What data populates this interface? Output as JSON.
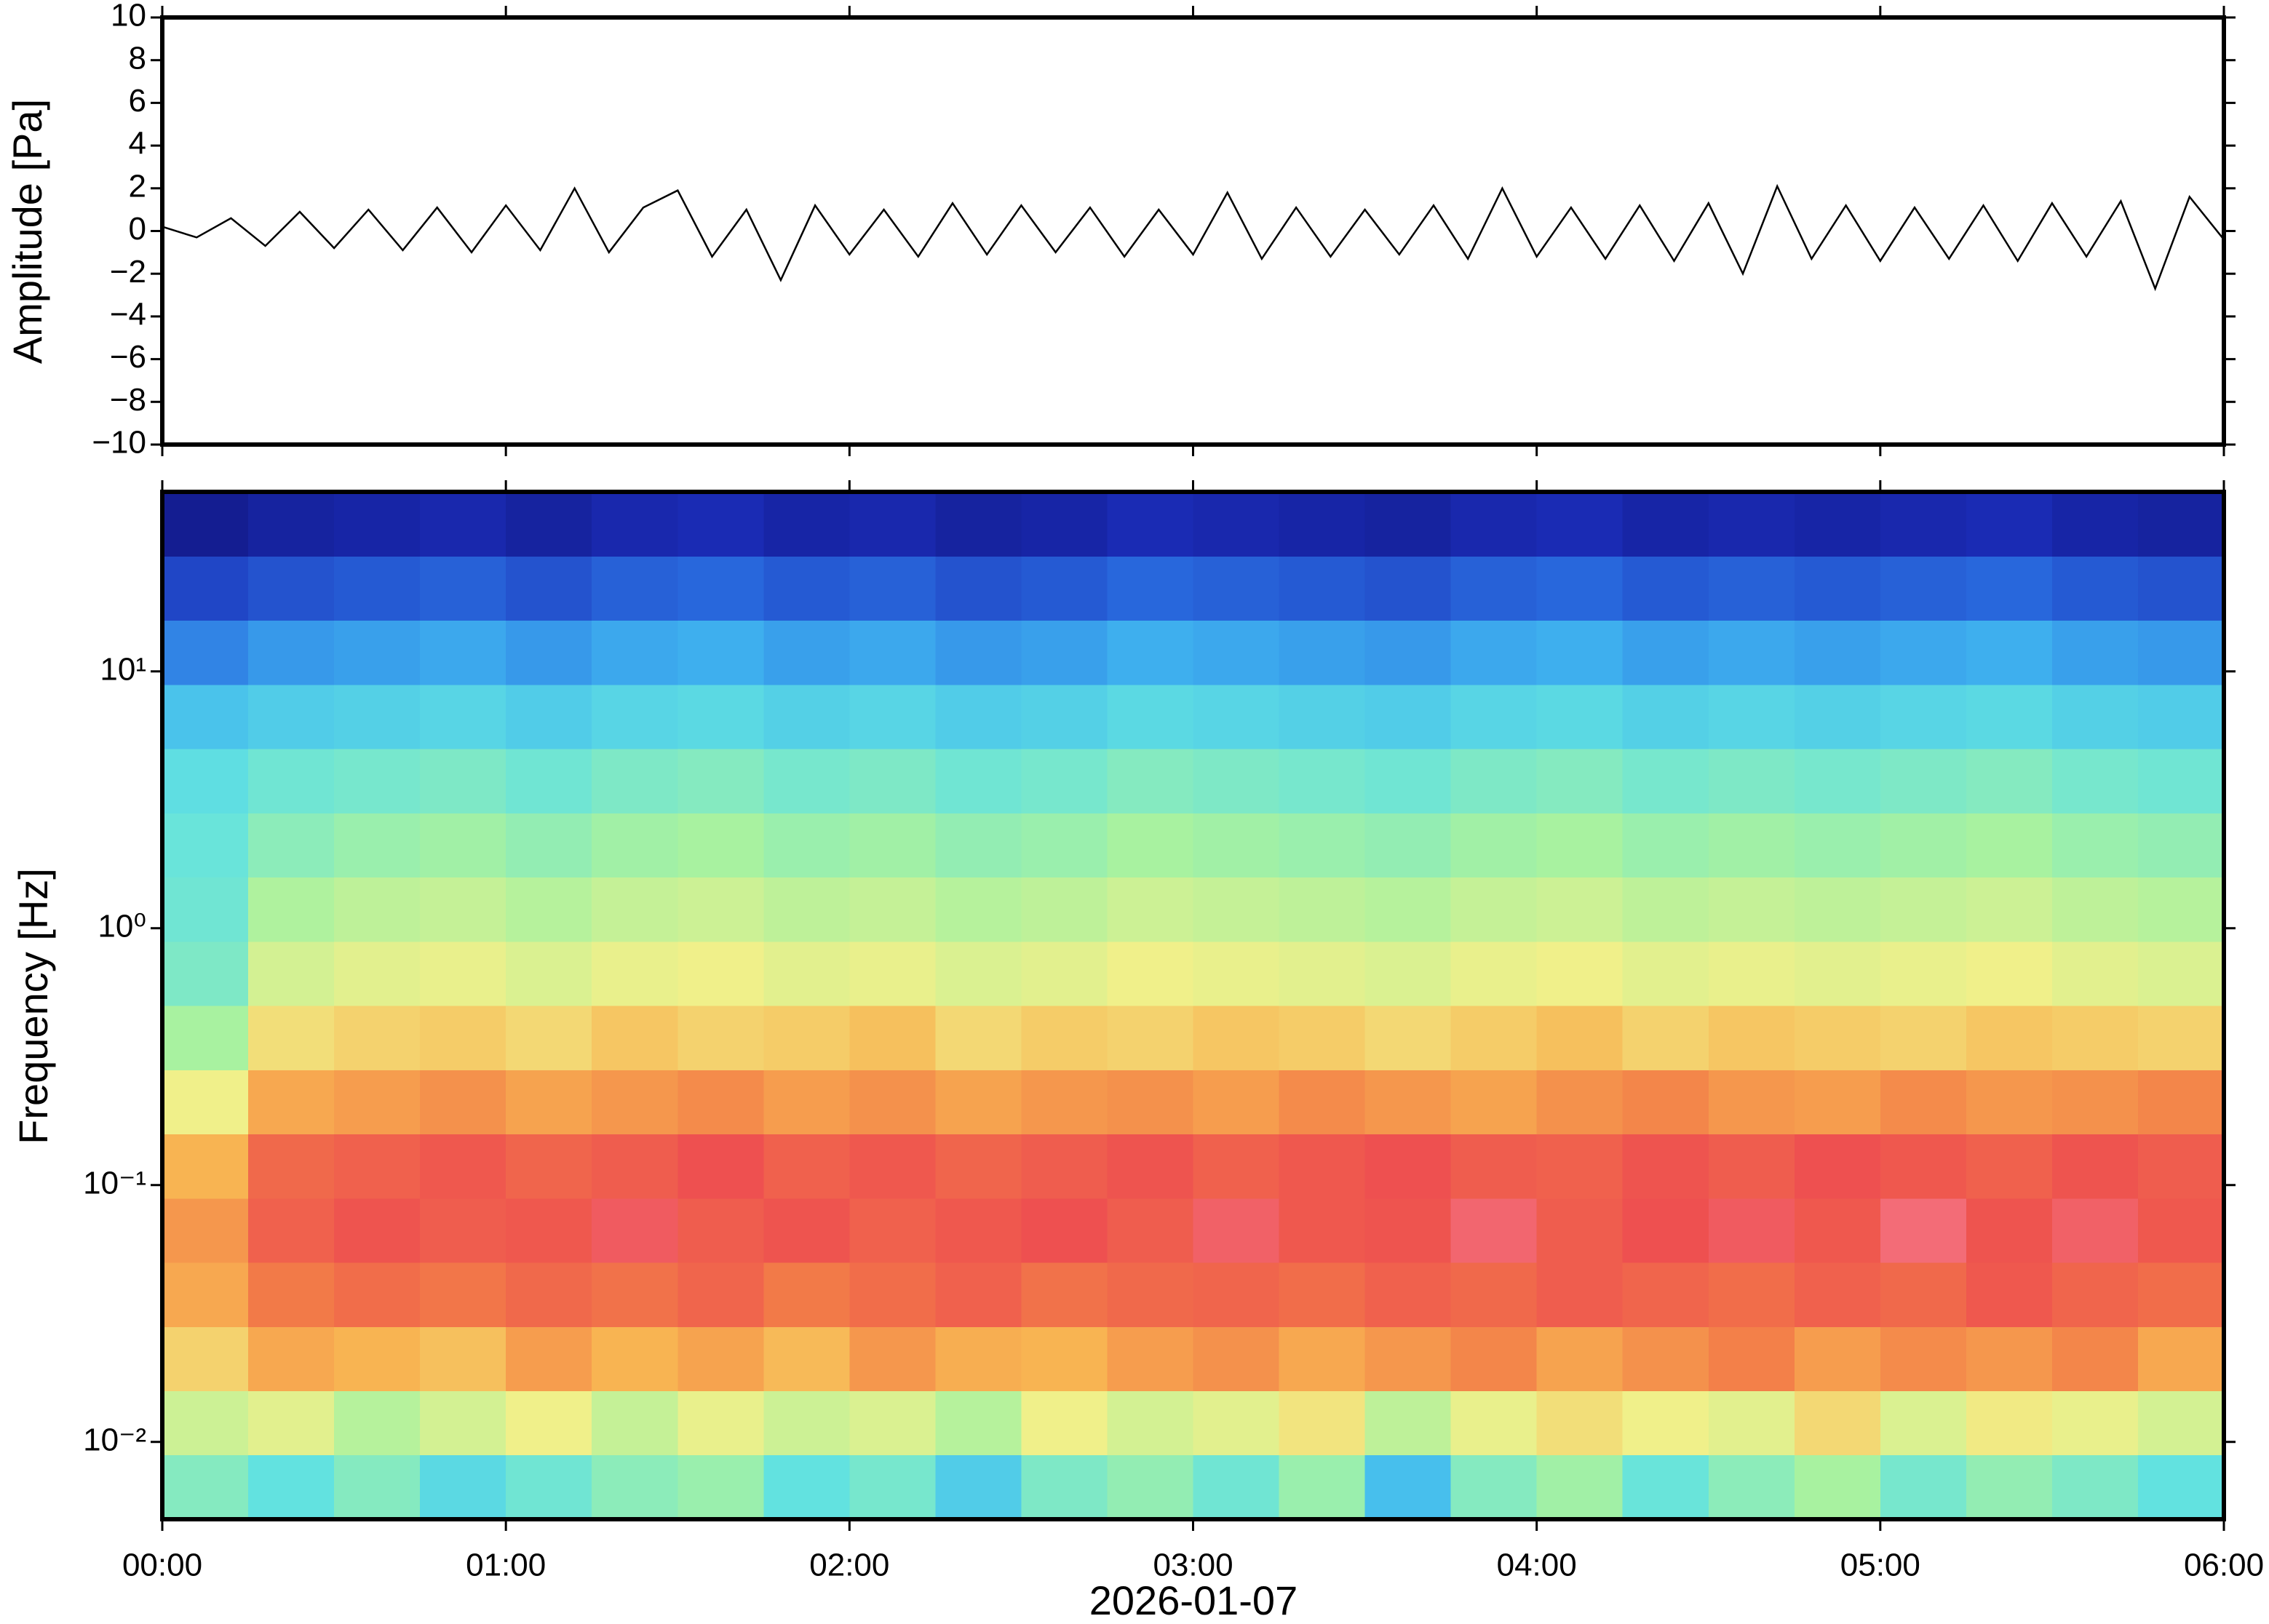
{
  "chart_data": [
    {
      "type": "line",
      "ylabel": "Amplitude [Pa]",
      "color": "#000000",
      "x": [
        0,
        0.1,
        0.2,
        0.3,
        0.4,
        0.5,
        0.6,
        0.7,
        0.8,
        0.9,
        1,
        1.1,
        1.2,
        1.3,
        1.4,
        1.5,
        1.6,
        1.7,
        1.8,
        1.9,
        2,
        2.1,
        2.2,
        2.3,
        2.4,
        2.5,
        2.6,
        2.7,
        2.8,
        2.9,
        3,
        3.1,
        3.2,
        3.3,
        3.4,
        3.5,
        3.6,
        3.7,
        3.8,
        3.9,
        4,
        4.1,
        4.2,
        4.3,
        4.4,
        4.5,
        4.6,
        4.7,
        4.8,
        4.9,
        5,
        5.1,
        5.2,
        5.3,
        5.4,
        5.5,
        5.6,
        5.7,
        5.8,
        5.9,
        6
      ],
      "values": [
        0.2,
        -0.3,
        0.6,
        -0.7,
        0.9,
        -0.8,
        1.0,
        -0.9,
        1.1,
        -1.0,
        1.2,
        -0.9,
        2.0,
        -1.0,
        1.1,
        1.9,
        -1.2,
        1.0,
        -2.3,
        1.2,
        -1.1,
        1.0,
        -1.2,
        1.3,
        -1.1,
        1.2,
        -1.0,
        1.1,
        -1.2,
        1.0,
        -1.1,
        1.8,
        -1.3,
        1.1,
        -1.2,
        1.0,
        -1.1,
        1.2,
        -1.3,
        2.0,
        -1.2,
        1.1,
        -1.3,
        1.2,
        -1.4,
        1.3,
        -2.0,
        2.1,
        -1.3,
        1.2,
        -1.4,
        1.1,
        -1.3,
        1.2,
        -1.4,
        1.3,
        -1.2,
        1.4,
        -2.7,
        1.6,
        -0.4
      ],
      "xlim": [
        0,
        6
      ],
      "xticks": [
        0,
        1,
        2,
        3,
        4,
        5,
        6
      ],
      "ylim": [
        -10,
        10
      ],
      "yticks": [
        {
          "value": -10,
          "label": "−10"
        },
        {
          "value": -8,
          "label": "−8"
        },
        {
          "value": -6,
          "label": "−6"
        },
        {
          "value": -4,
          "label": "−4"
        },
        {
          "value": -2,
          "label": "−2"
        },
        0,
        2,
        4,
        6,
        8,
        10
      ]
    },
    {
      "type": "heatmap",
      "ylabel": "Frequency [Hz]",
      "xlabel": "2026-01-07",
      "log_y": true,
      "xlim": [
        0,
        6
      ],
      "xticks": [
        {
          "value": 0,
          "label": "00:00"
        },
        {
          "value": 1,
          "label": "01:00"
        },
        {
          "value": 2,
          "label": "02:00"
        },
        {
          "value": 3,
          "label": "03:00"
        },
        {
          "value": 4,
          "label": "04:00"
        },
        {
          "value": 5,
          "label": "05:00"
        },
        {
          "value": 6,
          "label": "06:00"
        }
      ],
      "ylim": [
        0.005,
        50
      ],
      "yticks": [
        {
          "value": 0.01,
          "label": "10⁻²"
        },
        {
          "value": 0.1,
          "label": "10⁻¹"
        },
        {
          "value": 1,
          "label": "10⁰"
        },
        {
          "value": 10,
          "label": "10¹"
        }
      ],
      "xbins": [
        0,
        0.25,
        0.5,
        0.75,
        1,
        1.25,
        1.5,
        1.75,
        2,
        2.25,
        2.5,
        2.75,
        3,
        3.25,
        3.5,
        3.75,
        4,
        4.25,
        4.5,
        4.75,
        5,
        5.25,
        5.5,
        5.75,
        6
      ],
      "ybins": [
        0.005,
        0.0089,
        0.0158,
        0.0281,
        0.05,
        0.0889,
        0.158,
        0.281,
        0.5,
        0.889,
        1.58,
        2.81,
        5,
        8.89,
        15.8,
        28.1,
        50
      ],
      "zlim": [
        0,
        10
      ],
      "colormap": [
        "#0d0f6e",
        "#1a2bb4",
        "#2a6ee0",
        "#40b6f0",
        "#62e2e0",
        "#a8f2a0",
        "#f0f08a",
        "#f8b452",
        "#f27a48",
        "#ee5050",
        "#f8889e"
      ],
      "z": [
        [
          4.5,
          4,
          4.5,
          3.8,
          4.2,
          4.6,
          4.8,
          4,
          4.3,
          3.5,
          4.4,
          4.7,
          4.2,
          4.8,
          3.2,
          4.5,
          4.9,
          4.1,
          4.6,
          5,
          4.3,
          4.7,
          4.4,
          4
        ],
        [
          5.5,
          5.8,
          5.2,
          5.6,
          6,
          5.4,
          5.9,
          5.5,
          5.7,
          5.2,
          6,
          5.6,
          5.8,
          6.2,
          5.3,
          5.9,
          6.3,
          6,
          5.8,
          6.4,
          5.7,
          6.1,
          5.9,
          5.6
        ],
        [
          6.5,
          7.2,
          7,
          6.8,
          7.4,
          7,
          7.3,
          6.9,
          7.5,
          7.1,
          7,
          7.4,
          7.6,
          7.2,
          7.5,
          7.8,
          7.3,
          7.6,
          7.9,
          7.4,
          7.7,
          7.5,
          7.8,
          7.2
        ],
        [
          7.2,
          8,
          8.3,
          8.1,
          8.4,
          8.2,
          8.5,
          8,
          8.3,
          8.6,
          8.2,
          8.4,
          8.5,
          8.3,
          8.6,
          8.4,
          8.7,
          8.5,
          8.3,
          8.6,
          8.4,
          8.8,
          8.5,
          8.3
        ],
        [
          7.5,
          8.6,
          8.9,
          8.7,
          8.8,
          9.2,
          8.7,
          8.9,
          8.6,
          8.8,
          9,
          8.7,
          9.3,
          8.8,
          8.9,
          9.4,
          8.7,
          9,
          9.2,
          8.8,
          9.5,
          8.9,
          9.3,
          8.8
        ],
        [
          7,
          8.4,
          8.6,
          8.8,
          8.5,
          8.7,
          9,
          8.6,
          8.8,
          8.5,
          8.7,
          8.9,
          8.6,
          8.8,
          9,
          8.7,
          8.6,
          8.9,
          8.7,
          9,
          8.8,
          8.6,
          8.9,
          8.7
        ],
        [
          6,
          7.2,
          7.4,
          7.6,
          7.3,
          7.5,
          7.7,
          7.4,
          7.6,
          7.3,
          7.5,
          7.6,
          7.4,
          7.7,
          7.5,
          7.3,
          7.6,
          7.8,
          7.5,
          7.4,
          7.7,
          7.5,
          7.6,
          7.8
        ],
        [
          5,
          6.3,
          6.5,
          6.6,
          6.4,
          6.7,
          6.5,
          6.6,
          6.8,
          6.4,
          6.6,
          6.5,
          6.7,
          6.6,
          6.4,
          6.6,
          6.8,
          6.5,
          6.7,
          6.6,
          6.5,
          6.7,
          6.6,
          6.5
        ],
        [
          4.4,
          5.6,
          5.8,
          5.9,
          5.7,
          5.9,
          6,
          5.8,
          5.9,
          5.7,
          5.8,
          6,
          5.9,
          5.8,
          5.7,
          5.9,
          6,
          5.8,
          5.9,
          5.8,
          5.9,
          6,
          5.8,
          5.7
        ],
        [
          4.2,
          5.1,
          5.3,
          5.4,
          5.2,
          5.4,
          5.5,
          5.3,
          5.4,
          5.2,
          5.3,
          5.5,
          5.4,
          5.3,
          5.2,
          5.4,
          5.5,
          5.3,
          5.4,
          5.3,
          5.4,
          5.5,
          5.3,
          5.2
        ],
        [
          4.1,
          4.6,
          4.8,
          4.9,
          4.7,
          4.9,
          5,
          4.8,
          4.9,
          4.7,
          4.8,
          5,
          4.9,
          4.8,
          4.7,
          4.9,
          5,
          4.8,
          4.9,
          4.8,
          4.9,
          5,
          4.8,
          4.7
        ],
        [
          3.9,
          4.2,
          4.3,
          4.4,
          4.2,
          4.4,
          4.5,
          4.3,
          4.4,
          4.2,
          4.3,
          4.5,
          4.4,
          4.3,
          4.2,
          4.4,
          4.5,
          4.3,
          4.4,
          4.3,
          4.4,
          4.5,
          4.3,
          4.2
        ],
        [
          3.3,
          3.5,
          3.6,
          3.7,
          3.5,
          3.7,
          3.8,
          3.6,
          3.7,
          3.5,
          3.6,
          3.8,
          3.7,
          3.6,
          3.5,
          3.7,
          3.8,
          3.6,
          3.7,
          3.6,
          3.7,
          3.8,
          3.6,
          3.5
        ],
        [
          2.3,
          2.6,
          2.7,
          2.8,
          2.6,
          2.8,
          2.9,
          2.7,
          2.8,
          2.6,
          2.7,
          2.9,
          2.8,
          2.7,
          2.6,
          2.8,
          2.9,
          2.7,
          2.8,
          2.7,
          2.8,
          2.9,
          2.7,
          2.6
        ],
        [
          1.4,
          1.6,
          1.7,
          1.8,
          1.6,
          1.8,
          1.9,
          1.7,
          1.8,
          1.6,
          1.7,
          1.9,
          1.8,
          1.7,
          1.6,
          1.8,
          1.9,
          1.7,
          1.8,
          1.7,
          1.8,
          1.9,
          1.7,
          1.6
        ],
        [
          0.5,
          0.7,
          0.8,
          0.9,
          0.7,
          0.9,
          1,
          0.8,
          0.9,
          0.7,
          0.8,
          1,
          0.9,
          0.8,
          0.7,
          0.9,
          1,
          0.8,
          0.9,
          0.8,
          0.9,
          1,
          0.8,
          0.7
        ]
      ]
    }
  ]
}
